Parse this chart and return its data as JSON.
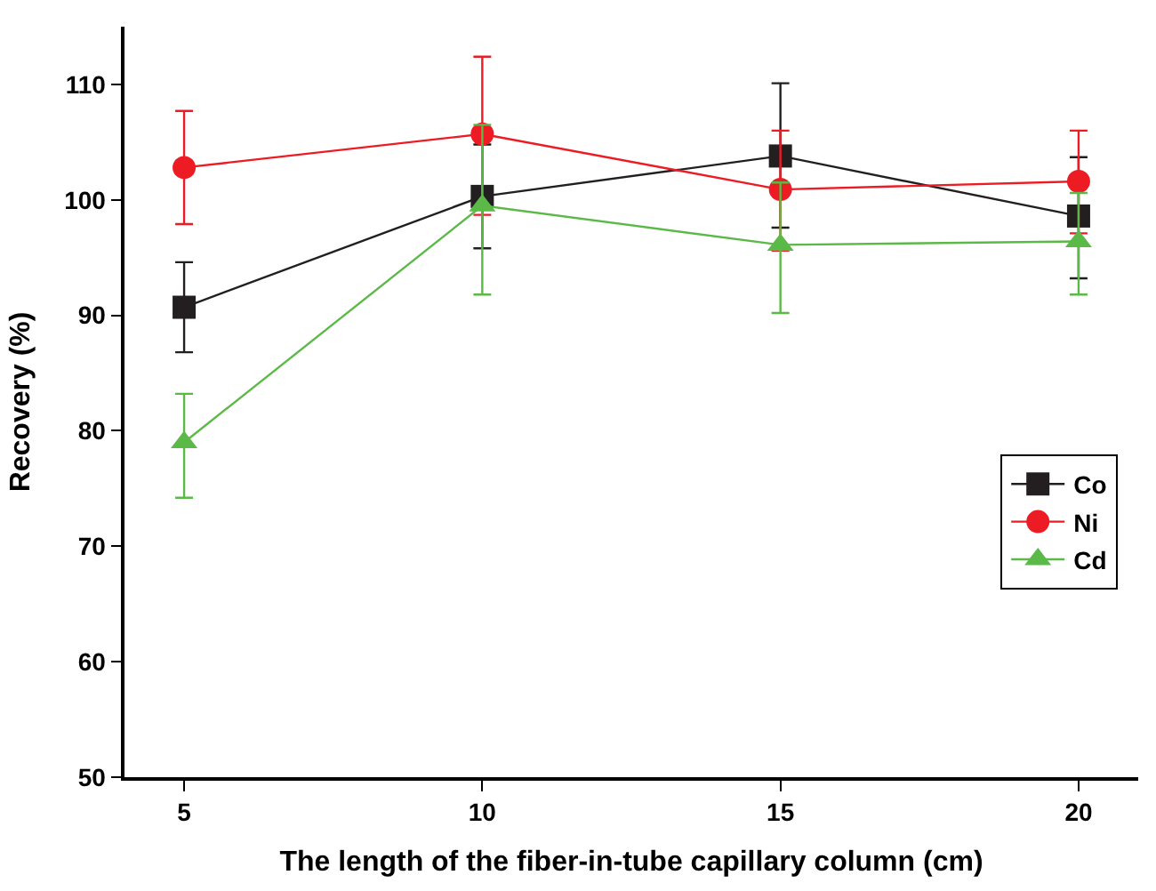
{
  "chart_data": {
    "type": "line",
    "xlabel": "The length of the fiber-in-tube capillary column (cm)",
    "ylabel": "Recovery (%)",
    "x": [
      5,
      10,
      15,
      20
    ],
    "xlim": [
      4,
      21
    ],
    "xticks": [
      5,
      10,
      15,
      20
    ],
    "ylim": [
      50,
      115
    ],
    "yticks": [
      50,
      60,
      70,
      80,
      90,
      100,
      110
    ],
    "legend": "bottom right",
    "series": [
      {
        "name": "Co",
        "color": "#231f20",
        "marker": "square",
        "values": [
          90.7,
          100.3,
          103.8,
          98.6
        ],
        "errors": [
          [
            86.8,
            94.6
          ],
          [
            95.8,
            104.8
          ],
          [
            97.6,
            110.1
          ],
          [
            93.2,
            103.7
          ]
        ]
      },
      {
        "name": "Ni",
        "color": "#ed1c24",
        "marker": "circle",
        "values": [
          102.8,
          105.7,
          100.9,
          101.6
        ],
        "errors": [
          [
            97.9,
            107.7
          ],
          [
            98.7,
            112.4
          ],
          [
            95.6,
            106.0
          ],
          [
            97.1,
            106.0
          ]
        ]
      },
      {
        "name": "Cd",
        "color": "#5bb947",
        "marker": "triangle",
        "values": [
          79.0,
          99.5,
          96.1,
          96.4
        ],
        "errors": [
          [
            74.2,
            83.2
          ],
          [
            91.8,
            106.5
          ],
          [
            90.2,
            101.5
          ],
          [
            91.8,
            100.6
          ]
        ]
      }
    ]
  }
}
